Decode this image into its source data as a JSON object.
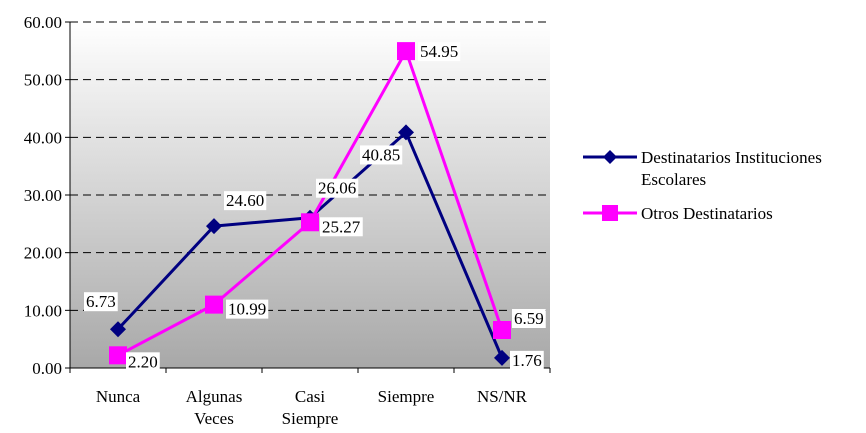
{
  "chart_data": {
    "type": "line",
    "categories": [
      [
        "Nunca"
      ],
      [
        "Algunas",
        "Veces"
      ],
      [
        "Casi",
        "Siempre"
      ],
      [
        "Siempre"
      ],
      [
        "NS/NR"
      ]
    ],
    "ylim": [
      0,
      60
    ],
    "yticks": [
      "0.00",
      "10.00",
      "20.00",
      "30.00",
      "40.00",
      "50.00",
      "60.00"
    ],
    "grid": true,
    "legend_position": "right",
    "series": [
      {
        "name": "Destinatarios Instituciones Escolares",
        "legend_lines": [
          "Destinatarios Instituciones",
          "Escolares"
        ],
        "values": [
          6.73,
          24.6,
          26.06,
          40.85,
          1.76
        ],
        "labels": [
          "6.73",
          "24.60",
          "26.06",
          "40.85",
          "1.76"
        ],
        "color": "#000080",
        "marker": "diamond"
      },
      {
        "name": "Otros Destinatarios",
        "legend_lines": [
          "Otros Destinatarios"
        ],
        "values": [
          2.2,
          10.99,
          25.27,
          54.95,
          6.59
        ],
        "labels": [
          "2.20",
          "10.99",
          "25.27",
          "54.95",
          "6.59"
        ],
        "color": "#ff00ff",
        "marker": "square"
      }
    ]
  }
}
